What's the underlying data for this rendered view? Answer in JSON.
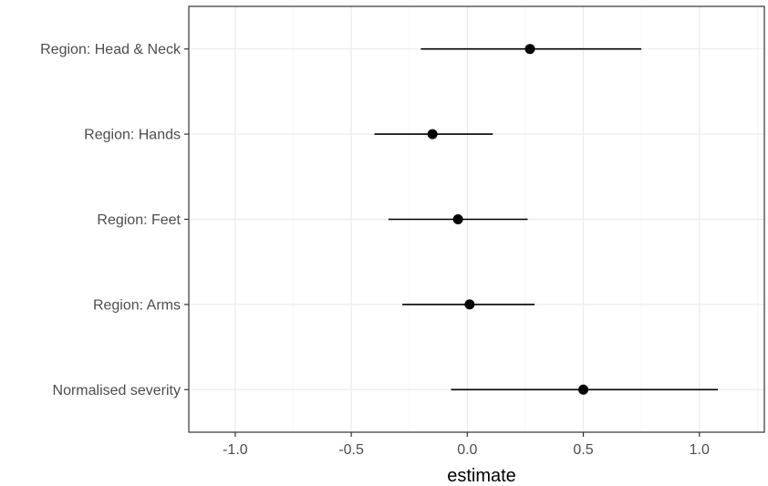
{
  "chart_data": {
    "type": "scatter",
    "subtype": "coefficient-plot-with-error-bars",
    "title": "",
    "xlabel": "estimate",
    "ylabel": "",
    "xlim": [
      -1.2,
      1.28
    ],
    "x_ticks": [
      -1.0,
      -0.5,
      0.0,
      0.5,
      1.0
    ],
    "x_tick_labels": [
      "-1.0",
      "-0.5",
      "0.0",
      "0.5",
      "1.0"
    ],
    "categories": [
      "Region: Head & Neck",
      "Region: Hands",
      "Region: Feet",
      "Region: Arms",
      "Normalised severity"
    ],
    "estimates": [
      0.27,
      -0.15,
      -0.04,
      0.01,
      0.5
    ],
    "lower": [
      -0.2,
      -0.4,
      -0.34,
      -0.28,
      -0.07
    ],
    "upper": [
      0.75,
      0.11,
      0.26,
      0.29,
      1.08
    ],
    "grid": true,
    "legend": "none",
    "colors": {
      "points": "#000000",
      "grid": "#ebebeb",
      "border": "#333333",
      "tick_text": "#4d4d4d"
    }
  }
}
